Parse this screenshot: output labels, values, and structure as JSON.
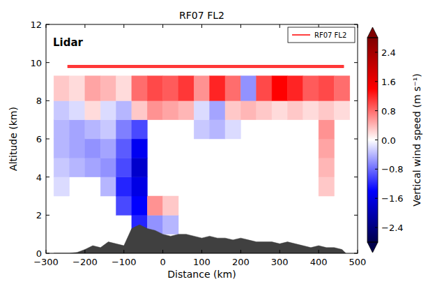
{
  "chart_data": {
    "type": "heatmap",
    "title": "RF07 FL2",
    "x_label": "Distance (km)",
    "y_label": "Altitude (km)",
    "annotation": "Lidar",
    "xlim": [
      -300,
      500
    ],
    "xticks": [
      -300,
      -200,
      -100,
      0,
      100,
      200,
      300,
      400,
      500
    ],
    "ylim": [
      0,
      12
    ],
    "yticks": [
      0,
      2,
      4,
      6,
      8,
      10,
      12
    ],
    "legend": "upper right",
    "heatmap": {
      "x_edges": [
        -280,
        -240,
        -200,
        -160,
        -120,
        -80,
        -40,
        0,
        40,
        80,
        120,
        160,
        200,
        240,
        280,
        320,
        360,
        400,
        440,
        480
      ],
      "y_edges": [
        0,
        1,
        2,
        3,
        4,
        5,
        6,
        7,
        8,
        9.3
      ],
      "cells": [
        [
          null,
          null,
          null,
          null,
          null,
          null,
          null,
          null,
          null,
          null,
          null,
          null,
          null,
          null,
          null,
          null,
          null,
          null,
          null
        ],
        [
          null,
          null,
          null,
          null,
          null,
          -1.2,
          -0.6,
          -0.4,
          null,
          null,
          null,
          null,
          null,
          null,
          null,
          null,
          null,
          null,
          null
        ],
        [
          null,
          null,
          null,
          null,
          -1.0,
          -1.4,
          0.6,
          0.3,
          null,
          null,
          null,
          null,
          null,
          null,
          null,
          null,
          null,
          null,
          null
        ],
        [
          -0.2,
          null,
          null,
          -0.4,
          -1.2,
          -1.6,
          null,
          null,
          null,
          null,
          null,
          null,
          null,
          null,
          null,
          null,
          null,
          0.3,
          null
        ],
        [
          -0.3,
          -0.4,
          -0.5,
          -0.6,
          -1.0,
          -1.8,
          null,
          null,
          null,
          null,
          null,
          null,
          null,
          null,
          null,
          null,
          null,
          0.4,
          null
        ],
        [
          -0.4,
          -0.5,
          -0.6,
          -0.5,
          -0.9,
          -1.5,
          null,
          null,
          null,
          null,
          null,
          null,
          null,
          null,
          null,
          null,
          null,
          0.5,
          null
        ],
        [
          -0.4,
          -0.5,
          -0.4,
          -0.3,
          -0.7,
          -1.0,
          null,
          null,
          null,
          -0.3,
          -0.4,
          -0.2,
          null,
          null,
          null,
          null,
          null,
          0.6,
          null
        ],
        [
          -0.3,
          -0.2,
          0.2,
          -0.2,
          -0.4,
          0.3,
          0.6,
          0.5,
          0.4,
          -0.2,
          -0.5,
          0.3,
          0.4,
          0.3,
          0.2,
          0.3,
          0.2,
          0.3,
          0.2
        ],
        [
          0.3,
          0.2,
          0.5,
          0.4,
          0.2,
          0.8,
          1.0,
          0.9,
          1.1,
          0.6,
          1.2,
          0.8,
          -0.6,
          1.0,
          1.4,
          1.2,
          0.9,
          1.0,
          0.8
        ]
      ],
      "colorbar": {
        "label": "Vertical wind speed (m s⁻¹)",
        "range": [
          -2.8,
          2.8
        ],
        "ticks": [
          -2.4,
          -1.6,
          -0.8,
          {
            "value": 0,
            "label": "0.0"
          },
          0.8,
          1.6,
          2.4
        ]
      }
    },
    "series": [
      {
        "name": "RF07 FL2",
        "type": "line",
        "color": "#ff0000",
        "x": [
          -245,
          465
        ],
        "values": [
          9.8,
          9.8
        ]
      },
      {
        "type": "area",
        "color": "#404040",
        "x": [
          -280,
          -260,
          -240,
          -220,
          -200,
          -180,
          -160,
          -140,
          -120,
          -100,
          -80,
          -60,
          -40,
          -20,
          0,
          20,
          40,
          60,
          80,
          100,
          120,
          140,
          160,
          180,
          200,
          220,
          240,
          260,
          280,
          300,
          320,
          340,
          360,
          380,
          400,
          420,
          440,
          460,
          470
        ],
        "values": [
          0,
          0,
          0,
          0.05,
          0.2,
          0.4,
          0.3,
          0.6,
          0.5,
          0.4,
          1.3,
          1.5,
          1.3,
          1.2,
          1.0,
          0.9,
          1.0,
          1.0,
          0.9,
          0.8,
          0.9,
          0.8,
          0.8,
          0.7,
          0.8,
          0.7,
          0.6,
          0.6,
          0.6,
          0.5,
          0.6,
          0.5,
          0.4,
          0.3,
          0.4,
          0.3,
          0.3,
          0.2,
          0
        ]
      }
    ]
  }
}
